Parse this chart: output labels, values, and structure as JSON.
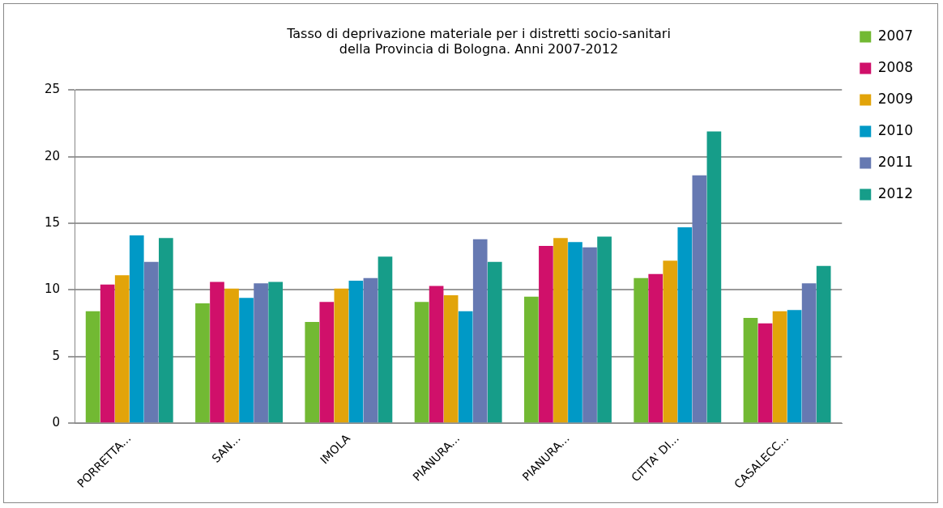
{
  "chart_data": {
    "type": "bar",
    "title": "Tasso di deprivazione materiale per i distretti socio-sanitari\ndella Provincia di Bologna. Anni 2007-2012",
    "categories": [
      "PORRETTA...",
      "SAN...",
      "IMOLA",
      "PIANURA...",
      "PIANURA...",
      "CITTA' DI...",
      "CASALECC..."
    ],
    "series": [
      {
        "name": "2007",
        "color": "#72b933",
        "values": [
          8.4,
          9.0,
          7.6,
          9.1,
          9.5,
          10.9,
          7.9
        ]
      },
      {
        "name": "2008",
        "color": "#d0106a",
        "values": [
          10.4,
          10.6,
          9.1,
          10.3,
          13.3,
          11.2,
          7.5
        ]
      },
      {
        "name": "2009",
        "color": "#e2a40a",
        "values": [
          11.1,
          10.1,
          10.1,
          9.6,
          13.9,
          12.2,
          8.4
        ]
      },
      {
        "name": "2010",
        "color": "#0099c6",
        "values": [
          14.1,
          9.4,
          10.7,
          8.4,
          13.6,
          14.7,
          8.5
        ]
      },
      {
        "name": "2011",
        "color": "#6679b2",
        "values": [
          12.1,
          10.5,
          10.9,
          13.8,
          13.2,
          18.6,
          10.5
        ]
      },
      {
        "name": "2012",
        "color": "#169d89",
        "values": [
          13.9,
          10.6,
          12.5,
          12.1,
          14.0,
          21.9,
          11.8
        ]
      }
    ],
    "ylim": [
      0,
      25
    ],
    "yticks": [
      0,
      5,
      10,
      15,
      20,
      25
    ],
    "grid": "y",
    "legend": "right"
  }
}
